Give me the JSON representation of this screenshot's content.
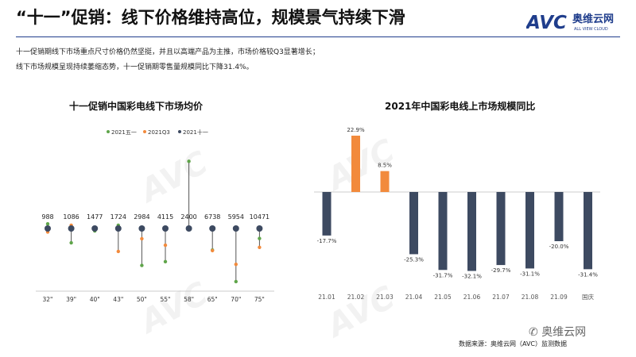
{
  "header": {
    "title": "“十一”促销：线下价格维持高位，规模景气持续下滑",
    "logo_text": "AVC",
    "logo_cn": "奥维云网",
    "logo_sub": "ALL VIEW CLOUD"
  },
  "body_text": {
    "line1": "十一促销期线下市场重点尺寸价格仍然坚挺，并且以高端产品为主推，市场价格较Q3显著增长；",
    "line2": "线下市场规模呈现持续萎缩态势，十一促销期零售量规模同比下降31.4%。"
  },
  "footer": {
    "source": "数据来源：奥维云网（AVC）监测数据",
    "wechat": "奥维云网"
  },
  "colors": {
    "navy": "#3d4a61",
    "green": "#5fa54a",
    "orange": "#f28a3c"
  },
  "chart_data": [
    {
      "type": "dot-plot",
      "title": "十一促销中国彩电线下市场均价",
      "legend": [
        "2021五一",
        "2021Q3",
        "2021十一"
      ],
      "legend_position": "top",
      "categories": [
        "32\"",
        "39\"",
        "40\"",
        "43\"",
        "50\"",
        "55\"",
        "58\"",
        "65\"",
        "70\"",
        "75\""
      ],
      "top_labels": [
        "988",
        "1086",
        "1477",
        "1724",
        "2984",
        "4115",
        "2400",
        "6738",
        "5954",
        "10471"
      ],
      "series": [
        {
          "name": "2021五一",
          "values": [
            0.17,
            -0.53,
            -0.09,
            0.12,
            -1.37,
            -1.23,
            2.49,
            -0.8,
            -1.97,
            -0.37
          ]
        },
        {
          "name": "2021Q3",
          "values": [
            -0.13,
            0.12,
            0.02,
            -0.85,
            -0.38,
            -0.62,
            null,
            -0.82,
            -1.33,
            -0.7
          ]
        },
        {
          "name": "2021十一",
          "values": [
            0,
            0,
            0,
            0,
            0,
            0,
            0,
            0,
            0,
            0
          ]
        }
      ],
      "grid": false
    },
    {
      "type": "bar",
      "title": "2021年中国彩电线上市场规模同比",
      "categories": [
        "21.01",
        "21.02",
        "21.03",
        "21.04",
        "21.05",
        "21.06",
        "21.07",
        "21.08",
        "21.09",
        "国庆"
      ],
      "values": [
        -17.7,
        22.9,
        8.5,
        -25.3,
        -31.7,
        -32.1,
        -29.7,
        -31.1,
        -20.0,
        -31.4
      ],
      "data_labels": [
        "-17.7%",
        "22.9%",
        "8.5%",
        "-25.3%",
        "-31.7%",
        "-32.1%",
        "-29.7%",
        "-31.1%",
        "-20.0%",
        "-31.4%"
      ],
      "colors": [
        "#3d4a61",
        "#f28a3c",
        "#f28a3c",
        "#3d4a61",
        "#3d4a61",
        "#3d4a61",
        "#3d4a61",
        "#3d4a61",
        "#3d4a61",
        "#3d4a61"
      ],
      "ylim": [
        -35,
        25
      ],
      "grid": false
    }
  ]
}
